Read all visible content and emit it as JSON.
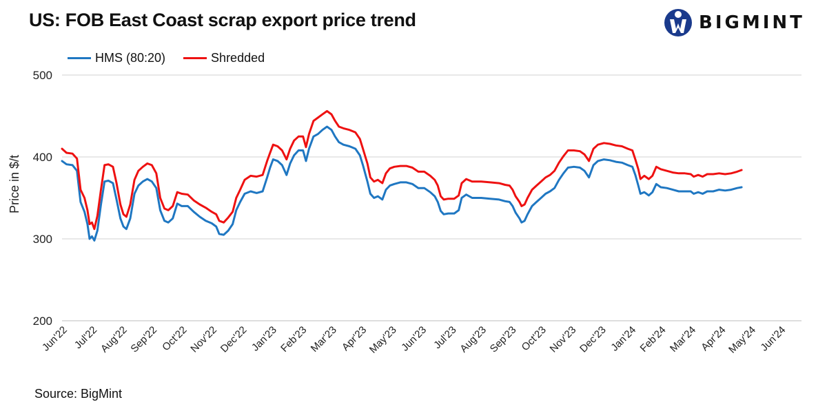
{
  "title": "US: FOB East Coast scrap export price trend",
  "logo": {
    "text": "BIGMINT",
    "color": "#1a3a8c"
  },
  "source": "Source: BigMint",
  "chart_data": {
    "type": "line",
    "ylabel": "Price in $/t",
    "xlabel": "",
    "ylim": [
      200,
      500
    ],
    "yticks": [
      200,
      300,
      400,
      500
    ],
    "grid": true,
    "legend_position": "top-left",
    "categories": [
      "Jun'22",
      "Jul'22",
      "Aug'22",
      "Sep'22",
      "Oct'22",
      "Nov'22",
      "Dec'22",
      "Jan'23",
      "Feb'23",
      "Mar'23",
      "Apr'23",
      "May'23",
      "Jun'23",
      "Jul'23",
      "Aug'23",
      "Sep'23",
      "Oct'23",
      "Nov'23",
      "Dec'23",
      "Jan'24",
      "Feb'24",
      "Mar'24",
      "Apr'24",
      "May'24",
      "Jun'24"
    ],
    "x_end": 24.7,
    "series": [
      {
        "name": "HMS (80:20)",
        "color": "#1f77c2",
        "points": [
          [
            0,
            395
          ],
          [
            0.15,
            391
          ],
          [
            0.35,
            390
          ],
          [
            0.5,
            383
          ],
          [
            0.62,
            345
          ],
          [
            0.75,
            333
          ],
          [
            0.85,
            318
          ],
          [
            0.92,
            300
          ],
          [
            1.0,
            303
          ],
          [
            1.08,
            298
          ],
          [
            1.18,
            310
          ],
          [
            1.3,
            342
          ],
          [
            1.42,
            370
          ],
          [
            1.55,
            371
          ],
          [
            1.7,
            368
          ],
          [
            1.82,
            348
          ],
          [
            1.95,
            325
          ],
          [
            2.05,
            315
          ],
          [
            2.15,
            312
          ],
          [
            2.28,
            325
          ],
          [
            2.42,
            355
          ],
          [
            2.55,
            365
          ],
          [
            2.7,
            370
          ],
          [
            2.85,
            373
          ],
          [
            3.0,
            370
          ],
          [
            3.15,
            362
          ],
          [
            3.28,
            335
          ],
          [
            3.42,
            322
          ],
          [
            3.55,
            320
          ],
          [
            3.7,
            325
          ],
          [
            3.85,
            343
          ],
          [
            4.0,
            340
          ],
          [
            4.2,
            340
          ],
          [
            4.4,
            333
          ],
          [
            4.6,
            327
          ],
          [
            4.8,
            322
          ],
          [
            5.0,
            319
          ],
          [
            5.15,
            315
          ],
          [
            5.25,
            306
          ],
          [
            5.4,
            305
          ],
          [
            5.55,
            310
          ],
          [
            5.7,
            318
          ],
          [
            5.82,
            335
          ],
          [
            5.95,
            345
          ],
          [
            6.1,
            355
          ],
          [
            6.3,
            358
          ],
          [
            6.5,
            356
          ],
          [
            6.7,
            358
          ],
          [
            6.85,
            375
          ],
          [
            6.95,
            387
          ],
          [
            7.05,
            397
          ],
          [
            7.2,
            395
          ],
          [
            7.35,
            390
          ],
          [
            7.5,
            378
          ],
          [
            7.62,
            392
          ],
          [
            7.75,
            402
          ],
          [
            7.9,
            408
          ],
          [
            8.05,
            408
          ],
          [
            8.15,
            395
          ],
          [
            8.25,
            410
          ],
          [
            8.4,
            425
          ],
          [
            8.55,
            428
          ],
          [
            8.7,
            433
          ],
          [
            8.85,
            437
          ],
          [
            9.0,
            433
          ],
          [
            9.12,
            425
          ],
          [
            9.25,
            418
          ],
          [
            9.4,
            415
          ],
          [
            9.6,
            413
          ],
          [
            9.8,
            410
          ],
          [
            9.95,
            402
          ],
          [
            10.05,
            390
          ],
          [
            10.2,
            370
          ],
          [
            10.3,
            355
          ],
          [
            10.42,
            350
          ],
          [
            10.55,
            352
          ],
          [
            10.7,
            348
          ],
          [
            10.82,
            360
          ],
          [
            10.95,
            365
          ],
          [
            11.1,
            367
          ],
          [
            11.3,
            369
          ],
          [
            11.5,
            369
          ],
          [
            11.7,
            367
          ],
          [
            11.9,
            362
          ],
          [
            12.1,
            362
          ],
          [
            12.3,
            357
          ],
          [
            12.45,
            352
          ],
          [
            12.55,
            345
          ],
          [
            12.65,
            334
          ],
          [
            12.75,
            330
          ],
          [
            12.9,
            331
          ],
          [
            13.1,
            331
          ],
          [
            13.25,
            335
          ],
          [
            13.35,
            350
          ],
          [
            13.5,
            354
          ],
          [
            13.7,
            350
          ],
          [
            14.0,
            350
          ],
          [
            14.3,
            349
          ],
          [
            14.6,
            348
          ],
          [
            14.8,
            346
          ],
          [
            14.95,
            345
          ],
          [
            15.05,
            340
          ],
          [
            15.15,
            332
          ],
          [
            15.28,
            325
          ],
          [
            15.35,
            320
          ],
          [
            15.45,
            322
          ],
          [
            15.55,
            330
          ],
          [
            15.7,
            340
          ],
          [
            15.85,
            345
          ],
          [
            16.0,
            350
          ],
          [
            16.15,
            355
          ],
          [
            16.3,
            358
          ],
          [
            16.45,
            362
          ],
          [
            16.6,
            372
          ],
          [
            16.75,
            380
          ],
          [
            16.9,
            387
          ],
          [
            17.1,
            388
          ],
          [
            17.3,
            387
          ],
          [
            17.45,
            383
          ],
          [
            17.6,
            375
          ],
          [
            17.75,
            390
          ],
          [
            17.9,
            395
          ],
          [
            18.1,
            397
          ],
          [
            18.3,
            396
          ],
          [
            18.5,
            394
          ],
          [
            18.7,
            393
          ],
          [
            18.9,
            390
          ],
          [
            19.05,
            388
          ],
          [
            19.15,
            378
          ],
          [
            19.25,
            365
          ],
          [
            19.32,
            355
          ],
          [
            19.45,
            357
          ],
          [
            19.6,
            353
          ],
          [
            19.72,
            357
          ],
          [
            19.85,
            367
          ],
          [
            20.0,
            363
          ],
          [
            20.2,
            362
          ],
          [
            20.4,
            360
          ],
          [
            20.6,
            358
          ],
          [
            20.8,
            358
          ],
          [
            21.0,
            358
          ],
          [
            21.1,
            355
          ],
          [
            21.25,
            357
          ],
          [
            21.4,
            355
          ],
          [
            21.55,
            358
          ],
          [
            21.75,
            358
          ],
          [
            21.95,
            360
          ],
          [
            22.15,
            359
          ],
          [
            22.35,
            360
          ],
          [
            22.55,
            362
          ],
          [
            22.7,
            363
          ]
        ]
      },
      {
        "name": "Shredded",
        "color": "#ee1111",
        "points": [
          [
            0,
            410
          ],
          [
            0.15,
            405
          ],
          [
            0.35,
            404
          ],
          [
            0.5,
            398
          ],
          [
            0.62,
            360
          ],
          [
            0.75,
            350
          ],
          [
            0.85,
            335
          ],
          [
            0.92,
            318
          ],
          [
            1.0,
            320
          ],
          [
            1.08,
            312
          ],
          [
            1.18,
            328
          ],
          [
            1.3,
            360
          ],
          [
            1.42,
            390
          ],
          [
            1.55,
            391
          ],
          [
            1.7,
            388
          ],
          [
            1.82,
            368
          ],
          [
            1.95,
            342
          ],
          [
            2.05,
            330
          ],
          [
            2.15,
            327
          ],
          [
            2.28,
            342
          ],
          [
            2.42,
            372
          ],
          [
            2.55,
            383
          ],
          [
            2.7,
            388
          ],
          [
            2.85,
            392
          ],
          [
            3.0,
            390
          ],
          [
            3.15,
            380
          ],
          [
            3.28,
            350
          ],
          [
            3.42,
            337
          ],
          [
            3.55,
            335
          ],
          [
            3.7,
            340
          ],
          [
            3.85,
            357
          ],
          [
            4.0,
            355
          ],
          [
            4.2,
            354
          ],
          [
            4.4,
            347
          ],
          [
            4.6,
            342
          ],
          [
            4.8,
            338
          ],
          [
            5.0,
            333
          ],
          [
            5.15,
            330
          ],
          [
            5.25,
            322
          ],
          [
            5.4,
            320
          ],
          [
            5.55,
            326
          ],
          [
            5.7,
            333
          ],
          [
            5.82,
            350
          ],
          [
            5.95,
            360
          ],
          [
            6.1,
            372
          ],
          [
            6.3,
            377
          ],
          [
            6.5,
            376
          ],
          [
            6.7,
            378
          ],
          [
            6.85,
            395
          ],
          [
            6.95,
            405
          ],
          [
            7.05,
            415
          ],
          [
            7.2,
            413
          ],
          [
            7.35,
            408
          ],
          [
            7.5,
            397
          ],
          [
            7.62,
            410
          ],
          [
            7.75,
            420
          ],
          [
            7.9,
            425
          ],
          [
            8.05,
            425
          ],
          [
            8.15,
            412
          ],
          [
            8.25,
            428
          ],
          [
            8.4,
            444
          ],
          [
            8.55,
            448
          ],
          [
            8.7,
            452
          ],
          [
            8.85,
            456
          ],
          [
            9.0,
            452
          ],
          [
            9.12,
            444
          ],
          [
            9.25,
            437
          ],
          [
            9.4,
            435
          ],
          [
            9.6,
            433
          ],
          [
            9.8,
            430
          ],
          [
            9.95,
            422
          ],
          [
            10.05,
            410
          ],
          [
            10.2,
            392
          ],
          [
            10.3,
            375
          ],
          [
            10.42,
            370
          ],
          [
            10.55,
            372
          ],
          [
            10.7,
            368
          ],
          [
            10.82,
            380
          ],
          [
            10.95,
            386
          ],
          [
            11.1,
            388
          ],
          [
            11.3,
            389
          ],
          [
            11.5,
            389
          ],
          [
            11.7,
            387
          ],
          [
            11.9,
            382
          ],
          [
            12.1,
            382
          ],
          [
            12.3,
            377
          ],
          [
            12.45,
            372
          ],
          [
            12.55,
            365
          ],
          [
            12.65,
            352
          ],
          [
            12.75,
            348
          ],
          [
            12.9,
            349
          ],
          [
            13.1,
            349
          ],
          [
            13.25,
            353
          ],
          [
            13.35,
            368
          ],
          [
            13.5,
            373
          ],
          [
            13.7,
            370
          ],
          [
            14.0,
            370
          ],
          [
            14.3,
            369
          ],
          [
            14.6,
            368
          ],
          [
            14.8,
            366
          ],
          [
            14.95,
            365
          ],
          [
            15.05,
            360
          ],
          [
            15.15,
            352
          ],
          [
            15.28,
            345
          ],
          [
            15.35,
            340
          ],
          [
            15.45,
            342
          ],
          [
            15.55,
            350
          ],
          [
            15.7,
            360
          ],
          [
            15.85,
            365
          ],
          [
            16.0,
            370
          ],
          [
            16.15,
            375
          ],
          [
            16.3,
            378
          ],
          [
            16.45,
            383
          ],
          [
            16.6,
            393
          ],
          [
            16.75,
            401
          ],
          [
            16.9,
            408
          ],
          [
            17.1,
            408
          ],
          [
            17.3,
            407
          ],
          [
            17.45,
            403
          ],
          [
            17.6,
            395
          ],
          [
            17.75,
            410
          ],
          [
            17.9,
            415
          ],
          [
            18.1,
            417
          ],
          [
            18.3,
            416
          ],
          [
            18.5,
            414
          ],
          [
            18.7,
            413
          ],
          [
            18.9,
            410
          ],
          [
            19.05,
            408
          ],
          [
            19.15,
            397
          ],
          [
            19.25,
            385
          ],
          [
            19.32,
            373
          ],
          [
            19.45,
            377
          ],
          [
            19.6,
            373
          ],
          [
            19.72,
            377
          ],
          [
            19.85,
            388
          ],
          [
            20.0,
            385
          ],
          [
            20.2,
            383
          ],
          [
            20.4,
            381
          ],
          [
            20.6,
            380
          ],
          [
            20.8,
            380
          ],
          [
            21.0,
            379
          ],
          [
            21.1,
            376
          ],
          [
            21.25,
            378
          ],
          [
            21.4,
            376
          ],
          [
            21.55,
            379
          ],
          [
            21.75,
            379
          ],
          [
            21.95,
            380
          ],
          [
            22.15,
            379
          ],
          [
            22.35,
            380
          ],
          [
            22.55,
            382
          ],
          [
            22.7,
            384
          ]
        ]
      }
    ]
  }
}
